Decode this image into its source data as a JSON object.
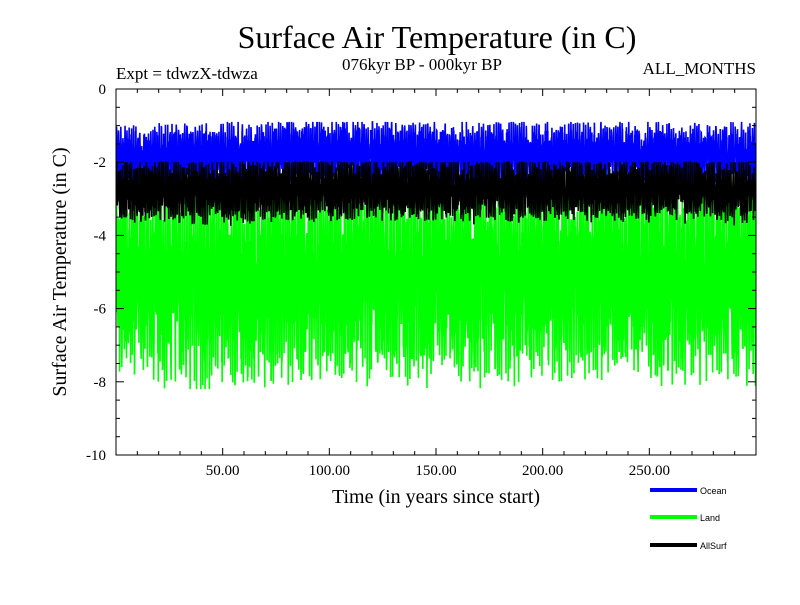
{
  "chart_data": {
    "type": "line",
    "title": "Surface Air Temperature (in C)",
    "subtitle": "076kyr BP - 000kyr BP",
    "left_label": "Expt = tdwzX-tdwza",
    "right_label": "ALL_MONTHS",
    "xlabel": "Time (in years since start)",
    "ylabel": "Surface Air Temperature (in C)",
    "xlim": [
      0,
      300
    ],
    "ylim": [
      -10,
      0
    ],
    "xticks": [
      50,
      100,
      150,
      200,
      250
    ],
    "xtick_labels": [
      "50.00",
      "100.00",
      "150.00",
      "200.00",
      "250.00"
    ],
    "yticks": [
      0,
      -2,
      -4,
      -6,
      -8,
      -10
    ],
    "ytick_labels": [
      "0",
      "-2",
      "-4",
      "-6",
      "-8",
      "-10"
    ],
    "grid": false,
    "legend_position": "bottom-right",
    "sampling": "monthly, every 12th value listed per year (values oscillate around these)",
    "series": [
      {
        "name": "Ocean",
        "color": "#0000ff",
        "mean_by_year": {
          "x": [
            0,
            50,
            100,
            150,
            200,
            250,
            300
          ],
          "y": [
            -1.9,
            -1.8,
            -1.7,
            -1.8,
            -1.8,
            -1.75,
            -1.8
          ]
        },
        "range": [
          -2.8,
          -0.9
        ]
      },
      {
        "name": "Land",
        "color": "#00ff00",
        "mean_by_year": {
          "x": [
            0,
            50,
            100,
            150,
            200,
            250,
            300
          ],
          "y": [
            -5.2,
            -5.3,
            -5.1,
            -5.2,
            -5.2,
            -5.1,
            -5.2
          ]
        },
        "range": [
          -8.2,
          -2.1
        ]
      },
      {
        "name": "AllSurf",
        "color": "#000000",
        "mean_by_year": {
          "x": [
            0,
            50,
            100,
            150,
            200,
            250,
            300
          ],
          "y": [
            -2.8,
            -2.8,
            -2.7,
            -2.75,
            -2.75,
            -2.7,
            -2.8
          ]
        },
        "range": [
          -3.9,
          -2.0
        ]
      }
    ]
  }
}
